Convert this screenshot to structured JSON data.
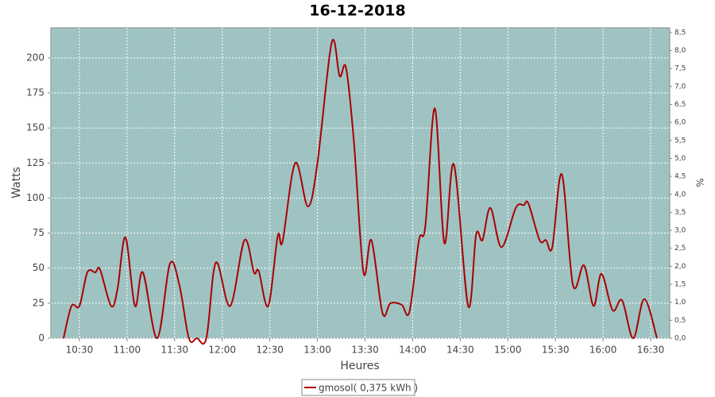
{
  "chart_data": {
    "type": "line",
    "title": "16-12-2018",
    "ylabel": "Watts",
    "xlabel": "Heures",
    "y2label": "%",
    "x": [
      "10:20",
      "10:25",
      "10:30",
      "10:35",
      "10:40",
      "10:43",
      "10:50",
      "10:54",
      "10:59",
      "11:05",
      "11:10",
      "11:19",
      "11:27",
      "11:33",
      "11:39",
      "11:44",
      "11:50",
      "11:56",
      "12:05",
      "12:14",
      "12:20",
      "12:23",
      "12:29",
      "12:35",
      "12:38",
      "12:46",
      "12:54",
      "13:00",
      "13:09",
      "13:14",
      "13:18",
      "13:23",
      "13:29",
      "13:34",
      "13:41",
      "13:46",
      "13:53",
      "13:58",
      "14:04",
      "14:08",
      "14:14",
      "14:20",
      "14:26",
      "14:35",
      "14:40",
      "14:44",
      "14:49",
      "14:56",
      "15:05",
      "15:10",
      "15:13",
      "15:20",
      "15:24",
      "15:28",
      "15:34",
      "15:41",
      "15:48",
      "15:54",
      "15:59",
      "16:06",
      "16:12",
      "16:19",
      "16:26",
      "16:34"
    ],
    "series": [
      {
        "name": "gmosol( 0,375 kWh )",
        "color": "#aa0000",
        "values": [
          0,
          23,
          23,
          47,
          47,
          49,
          23,
          35,
          72,
          23,
          47,
          0,
          53,
          38,
          0,
          0,
          0,
          54,
          23,
          70,
          47,
          48,
          23,
          73,
          69,
          125,
          94,
          125,
          211,
          187,
          193,
          140,
          47,
          70,
          18,
          25,
          24,
          19,
          70,
          80,
          164,
          68,
          124,
          23,
          74,
          70,
          93,
          65,
          93,
          95,
          96,
          70,
          70,
          65,
          117,
          38,
          52,
          23,
          46,
          20,
          27,
          0,
          28,
          0
        ]
      }
    ],
    "xlim": [
      "10:12",
      "16:42"
    ],
    "xticks": [
      "10:30",
      "11:00",
      "11:30",
      "12:00",
      "12:30",
      "13:00",
      "13:30",
      "14:00",
      "14:30",
      "15:00",
      "15:30",
      "16:00",
      "16:30"
    ],
    "ylim": [
      0,
      221.5
    ],
    "yticks": [
      0,
      25,
      50,
      75,
      100,
      125,
      150,
      175,
      200
    ],
    "y2lim": [
      0,
      8.63
    ],
    "y2ticks": [
      {
        "value": 0,
        "label": "0,0"
      },
      {
        "value": 0.5,
        "label": "0,5"
      },
      {
        "value": 1,
        "label": "1,0"
      },
      {
        "value": 1.5,
        "label": "1,5"
      },
      {
        "value": 2,
        "label": "2,0"
      },
      {
        "value": 2.5,
        "label": "2,5"
      },
      {
        "value": 3,
        "label": "3,0"
      },
      {
        "value": 3.5,
        "label": "3,5"
      },
      {
        "value": 4,
        "label": "4,0"
      },
      {
        "value": 4.5,
        "label": "4,5"
      },
      {
        "value": 5,
        "label": "5,0"
      },
      {
        "value": 5.5,
        "label": "5,5"
      },
      {
        "value": 6,
        "label": "6,0"
      },
      {
        "value": 6.5,
        "label": "6,5"
      },
      {
        "value": 7,
        "label": "7,0"
      },
      {
        "value": 7.5,
        "label": "7,5"
      },
      {
        "value": 8,
        "label": "8,0"
      },
      {
        "value": 8.5,
        "label": "8,5"
      }
    ],
    "grid": true,
    "background": "#9fc3c3"
  }
}
